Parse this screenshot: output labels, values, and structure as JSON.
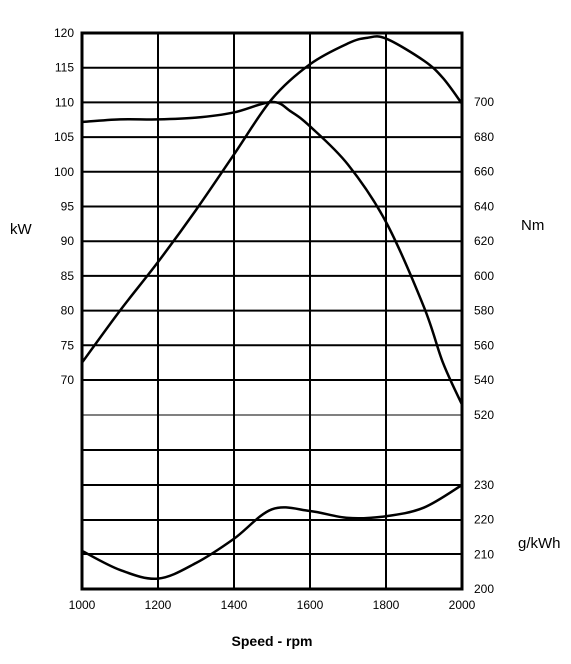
{
  "chart_data": {
    "type": "line",
    "xlabel": "Speed - rpm",
    "x_ticks": [
      1000,
      1200,
      1400,
      1600,
      1800,
      2000
    ],
    "xlim": [
      1000,
      2000
    ],
    "grid": true,
    "axes": {
      "power": {
        "label": "kW",
        "side": "left",
        "ticks": [
          70,
          75,
          80,
          85,
          90,
          95,
          100,
          105,
          110,
          115,
          120
        ],
        "range": [
          70,
          120
        ]
      },
      "torque": {
        "label": "Nm",
        "side": "right",
        "ticks": [
          520,
          540,
          560,
          580,
          600,
          620,
          640,
          660,
          680,
          700
        ],
        "range": [
          520,
          700
        ]
      },
      "consumption": {
        "label": "g/kWh",
        "side": "right",
        "ticks": [
          200,
          210,
          220,
          230
        ],
        "range": [
          200,
          230
        ]
      }
    },
    "series": [
      {
        "axis": "power",
        "x": [
          1000,
          1100,
          1200,
          1300,
          1400,
          1500,
          1600,
          1700,
          1750,
          1800,
          1900,
          1950,
          2000
        ],
        "y": [
          72.5,
          80,
          87,
          94.5,
          102.5,
          110.5,
          115.5,
          118.5,
          119.3,
          119.2,
          116,
          113.5,
          109.8
        ]
      },
      {
        "axis": "torque",
        "x": [
          1000,
          1100,
          1200,
          1300,
          1400,
          1500,
          1550,
          1600,
          1700,
          1800,
          1900,
          1950,
          2000
        ],
        "y": [
          688.5,
          690,
          690,
          691,
          694,
          700,
          694.5,
          686,
          664,
          631,
          582,
          550,
          526
        ]
      },
      {
        "axis": "consumption",
        "x": [
          1000,
          1100,
          1200,
          1300,
          1400,
          1500,
          1600,
          1700,
          1800,
          1900,
          2000
        ],
        "y": [
          211,
          205.5,
          203,
          207.5,
          214.5,
          223,
          222.5,
          220.5,
          221,
          223.5,
          230
        ]
      }
    ]
  }
}
